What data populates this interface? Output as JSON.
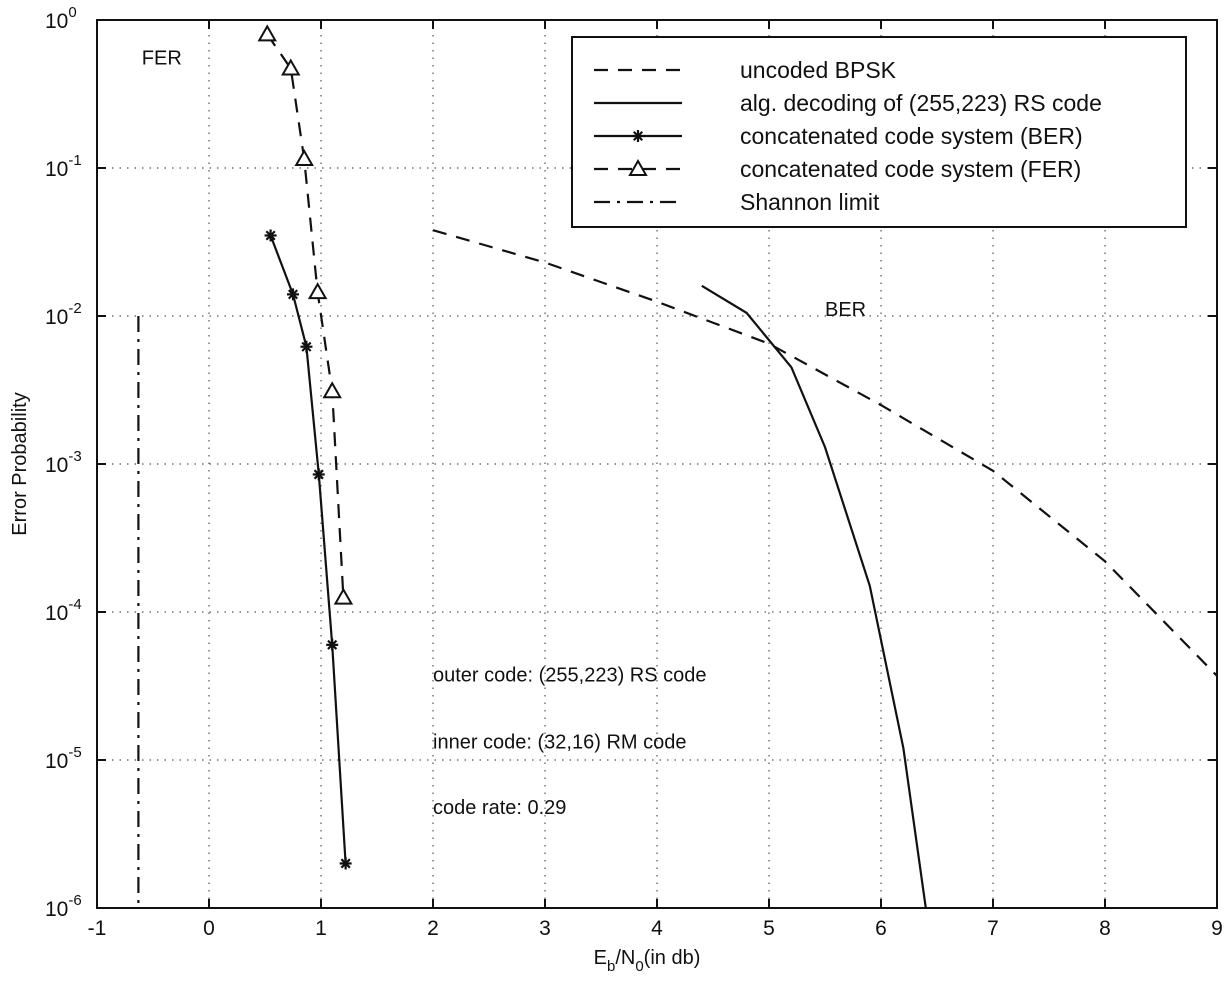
{
  "chart_data": {
    "type": "line",
    "title": "",
    "xlabel": "E_b/N_0(in db)",
    "xlabel_parts": {
      "e": "E",
      "b": "b",
      "slash": "/",
      "n": "N",
      "zero": "0",
      "rest": "(in db)"
    },
    "ylabel": "Error Probability",
    "xlim": [
      -1,
      9
    ],
    "ylim": [
      1e-06,
      1
    ],
    "yscale": "log",
    "grid": true,
    "legend_position": "top-right",
    "x_ticks": [
      -1,
      0,
      1,
      2,
      3,
      4,
      5,
      6,
      7,
      8,
      9
    ],
    "x_tick_labels": [
      "-1",
      "0",
      "1",
      "2",
      "3",
      "4",
      "5",
      "6",
      "7",
      "8",
      "9"
    ],
    "y_ticks": [
      {
        "value": 1e-06,
        "base": "10",
        "exp": "-6"
      },
      {
        "value": 1e-05,
        "base": "10",
        "exp": "-5"
      },
      {
        "value": 0.0001,
        "base": "10",
        "exp": "-4"
      },
      {
        "value": 0.001,
        "base": "10",
        "exp": "-3"
      },
      {
        "value": 0.01,
        "base": "10",
        "exp": "-2"
      },
      {
        "value": 0.1,
        "base": "10",
        "exp": "-1"
      },
      {
        "value": 1,
        "base": "10",
        "exp": "0"
      }
    ],
    "series": [
      {
        "name": "uncoded BPSK",
        "style": "dashed",
        "marker": "none",
        "color": "#111111",
        "x": [
          2,
          3,
          4,
          5,
          6,
          7,
          8,
          9
        ],
        "y": [
          0.038,
          0.023,
          0.0125,
          0.0065,
          0.0025,
          0.0009,
          0.00022,
          3.7e-05
        ]
      },
      {
        "name": "alg. decoding of (255,223) RS code",
        "style": "solid",
        "marker": "none",
        "color": "#111111",
        "x": [
          4.4,
          4.8,
          5.2,
          5.5,
          5.9,
          6.2,
          6.4
        ],
        "y": [
          0.016,
          0.0105,
          0.0045,
          0.0013,
          0.00015,
          1.2e-05,
          1e-06
        ]
      },
      {
        "name": "concatenated code system (BER)",
        "style": "solid",
        "marker": "star",
        "color": "#111111",
        "x": [
          0.55,
          0.75,
          0.87,
          0.98,
          1.1,
          1.22
        ],
        "y": [
          0.035,
          0.014,
          0.0062,
          0.00085,
          6e-05,
          2e-06
        ]
      },
      {
        "name": "concatenated code system (FER)",
        "style": "dashed",
        "marker": "triangle",
        "color": "#111111",
        "x": [
          0.52,
          0.73,
          0.85,
          0.97,
          1.1,
          1.2
        ],
        "y": [
          0.8,
          0.47,
          0.115,
          0.0145,
          0.0031,
          0.000125
        ]
      },
      {
        "name": "Shannon limit",
        "style": "dashdot",
        "marker": "none",
        "color": "#111111",
        "x": [
          -0.63,
          -0.63
        ],
        "y": [
          0.01,
          1e-06
        ]
      }
    ],
    "annotations": [
      {
        "text": "FER",
        "x": -0.6,
        "y": 0.5
      },
      {
        "text": "BER",
        "x": 5.5,
        "y": 0.01
      },
      {
        "text": "outer code: (255,223) RS code",
        "x": 2.0,
        "y": 3.4e-05
      },
      {
        "text": "inner code: (32,16) RM code",
        "x": 2.0,
        "y": 1.2e-05
      },
      {
        "text": "code rate: 0.29",
        "x": 2.0,
        "y": 4.3e-06
      }
    ]
  }
}
